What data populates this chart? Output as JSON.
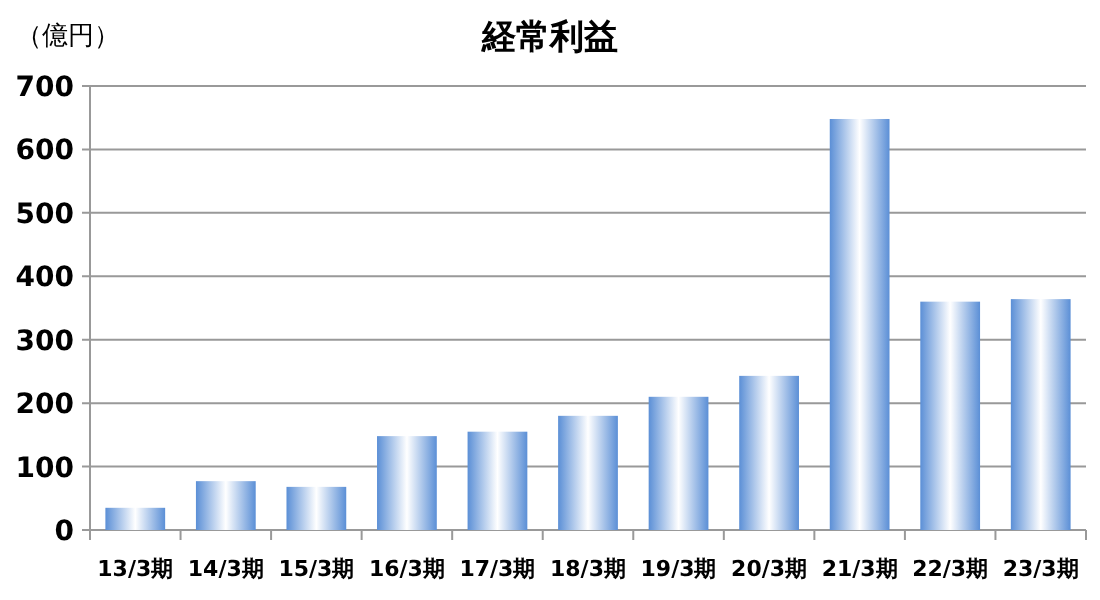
{
  "chart_data": {
    "type": "bar",
    "title": "経常利益",
    "ylabel": "（億円）",
    "categories": [
      "13/3期",
      "14/3期",
      "15/3期",
      "16/3期",
      "17/3期",
      "18/3期",
      "19/3期",
      "20/3期",
      "21/3期",
      "22/3期",
      "23/3期"
    ],
    "values": [
      35,
      77,
      68,
      148,
      155,
      180,
      210,
      243,
      648,
      360,
      364
    ],
    "color": "#5b8fd6",
    "ylim": [
      0,
      700
    ],
    "yticks": [
      0,
      100,
      200,
      300,
      400,
      500,
      600,
      700
    ],
    "grid": "y"
  }
}
